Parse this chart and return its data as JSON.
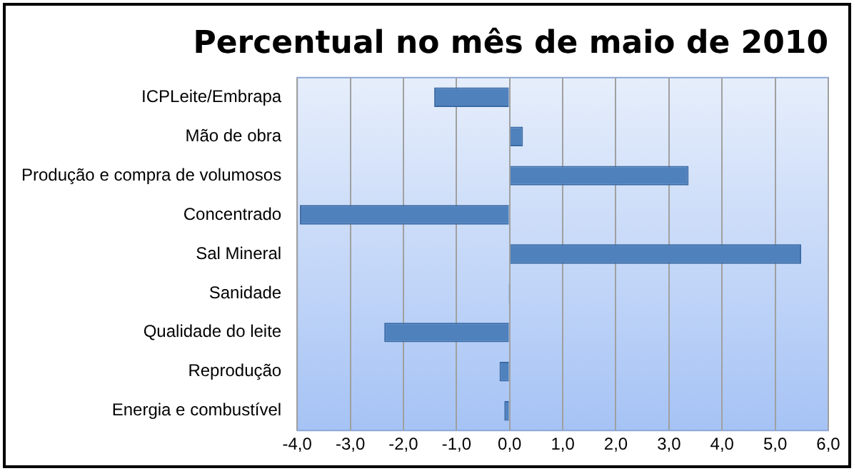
{
  "chart_data": {
    "type": "bar",
    "orientation": "horizontal",
    "title": "Percentual no mês de maio de 2010",
    "categories": [
      "ICPLeite/Embrapa",
      "Mão de obra",
      "Produção e compra de volumosos",
      "Concentrado",
      "Sal Mineral",
      "Sanidade",
      "Qualidade do leite",
      "Reprodução",
      "Energia e combustível"
    ],
    "values": [
      -1.42,
      0.25,
      3.37,
      -3.95,
      5.49,
      -0.02,
      -2.36,
      -0.19,
      -0.1
    ],
    "color": "#4f81bd",
    "xlim": [
      -4,
      6
    ],
    "xticks": [
      {
        "value": -4,
        "label": "-4,0"
      },
      {
        "value": -3,
        "label": "-3,0"
      },
      {
        "value": -2,
        "label": "-2,0"
      },
      {
        "value": -1,
        "label": "-1,0"
      },
      {
        "value": 0,
        "label": "0,0"
      },
      {
        "value": 1,
        "label": "1,0"
      },
      {
        "value": 2,
        "label": "2,0"
      },
      {
        "value": 3,
        "label": "3,0"
      },
      {
        "value": 4,
        "label": "4,0"
      },
      {
        "value": 5,
        "label": "5,0"
      },
      {
        "value": 6,
        "label": "6,0"
      }
    ],
    "grid": "x",
    "legend": false
  }
}
